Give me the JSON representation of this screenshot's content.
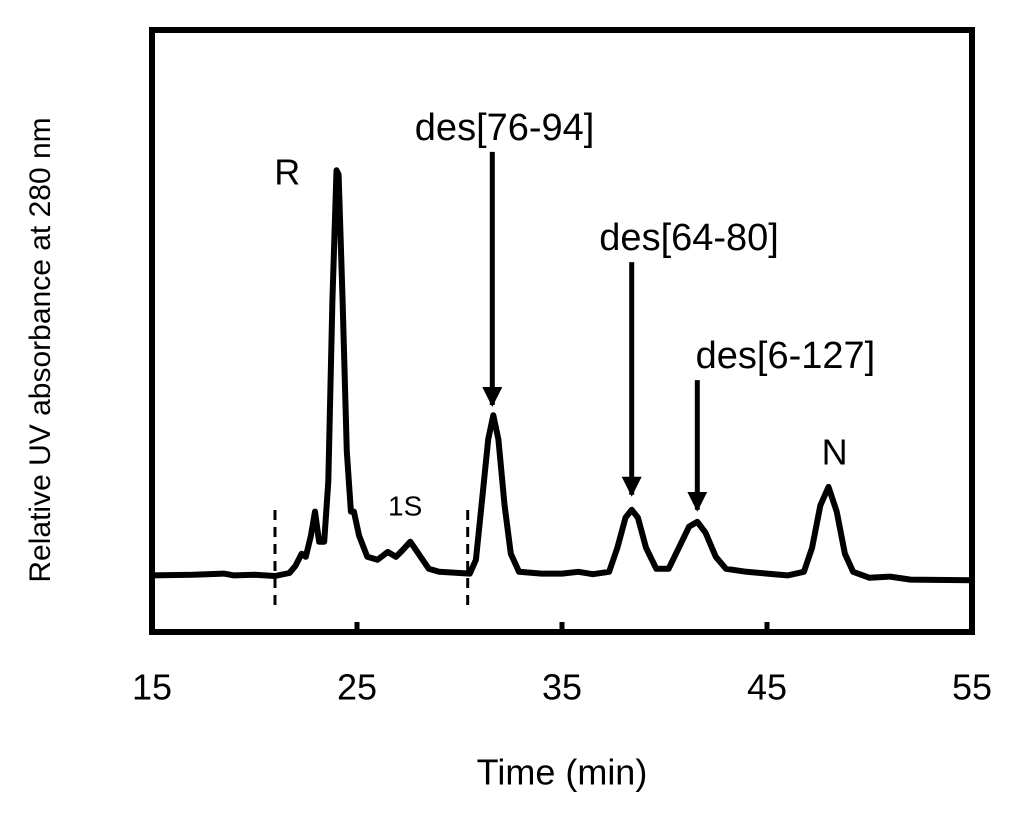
{
  "chart_data": {
    "type": "line",
    "x_label": "Time (min)",
    "y_label": "Relative UV absorbance at 280 nm",
    "xlim": [
      15,
      55
    ],
    "ylim": [
      0,
      1
    ],
    "xticks": [
      15,
      25,
      35,
      45,
      55
    ],
    "color": "#000000",
    "x": [
      15,
      17,
      18.5,
      19,
      20,
      21,
      21.7,
      22,
      22.3,
      22.5,
      22.75,
      22.95,
      23.15,
      23.4,
      23.6,
      23.8,
      24.0,
      24.1,
      24.3,
      24.5,
      24.7,
      24.85,
      25.1,
      25.5,
      26,
      26.5,
      26.9,
      27.2,
      27.6,
      28,
      28.5,
      29,
      30,
      30.5,
      30.8,
      31.1,
      31.4,
      31.65,
      31.9,
      32.2,
      32.5,
      32.9,
      34,
      35,
      35.8,
      36.5,
      37.3,
      37.7,
      38.1,
      38.4,
      38.7,
      39.1,
      39.6,
      40.2,
      40.7,
      41.2,
      41.6,
      42,
      42.5,
      43,
      44,
      45,
      46,
      46.8,
      47.2,
      47.6,
      48.0,
      48.4,
      48.8,
      49.2,
      50,
      51,
      52,
      55
    ],
    "values": [
      0.094,
      0.095,
      0.097,
      0.094,
      0.095,
      0.093,
      0.098,
      0.11,
      0.13,
      0.125,
      0.16,
      0.2,
      0.15,
      0.15,
      0.25,
      0.55,
      0.767,
      0.76,
      0.55,
      0.3,
      0.2,
      0.2,
      0.16,
      0.125,
      0.12,
      0.133,
      0.125,
      0.135,
      0.15,
      0.13,
      0.105,
      0.1,
      0.098,
      0.097,
      0.12,
      0.22,
      0.32,
      0.36,
      0.32,
      0.21,
      0.13,
      0.1,
      0.097,
      0.097,
      0.1,
      0.096,
      0.1,
      0.14,
      0.19,
      0.203,
      0.19,
      0.14,
      0.105,
      0.105,
      0.14,
      0.175,
      0.183,
      0.165,
      0.125,
      0.105,
      0.1,
      0.097,
      0.094,
      0.1,
      0.14,
      0.21,
      0.241,
      0.2,
      0.13,
      0.1,
      0.09,
      0.092,
      0.087,
      0.086
    ],
    "dashed_lines": [
      21,
      30.4
    ],
    "annotations": [
      {
        "text": "R",
        "xytext": [
          21.6,
          0.759
        ]
      },
      {
        "text": "1S",
        "xytext": [
          27.35,
          0.206
        ]
      },
      {
        "text": "des[76-94]",
        "xytext": [
          32.2,
          0.834
        ],
        "xy": [
          31.6,
          0.377
        ]
      },
      {
        "text": "des[64-80]",
        "xytext": [
          41.2,
          0.651
        ],
        "xy": [
          38.4,
          0.228
        ]
      },
      {
        "text": "des[6-127]",
        "xytext": [
          45.9,
          0.455
        ],
        "xy": [
          41.6,
          0.203
        ]
      },
      {
        "text": "N",
        "xytext": [
          48.3,
          0.294
        ]
      }
    ]
  }
}
